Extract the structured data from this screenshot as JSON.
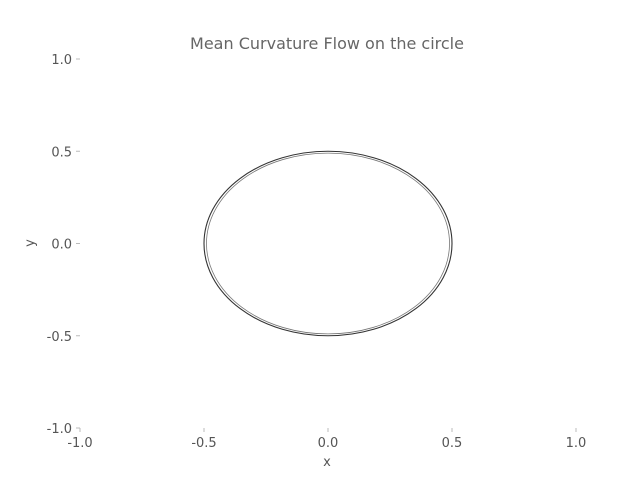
{
  "chart_data": {
    "type": "line",
    "title": "Mean Curvature Flow on the circle",
    "xlabel": "x",
    "ylabel": "y",
    "xlim": [
      -1.0,
      1.0
    ],
    "ylim": [
      -1.0,
      1.0
    ],
    "xticks": [
      -1.0,
      -0.5,
      0.0,
      0.5,
      1.0
    ],
    "yticks": [
      -1.0,
      -0.5,
      0.0,
      0.5,
      1.0
    ],
    "xtick_labels": [
      "-1.0",
      "-0.5",
      "0.0",
      "0.5",
      "1.0"
    ],
    "ytick_labels": [
      "-1.0",
      "-0.5",
      "0.0",
      "0.5",
      "1.0"
    ],
    "grid": false,
    "series": [
      {
        "radius": 0.5,
        "center": [
          0.0,
          0.0
        ],
        "color": "#333333"
      },
      {
        "radius": 0.49,
        "center": [
          0.0,
          0.0
        ],
        "color": "#777777"
      }
    ]
  }
}
